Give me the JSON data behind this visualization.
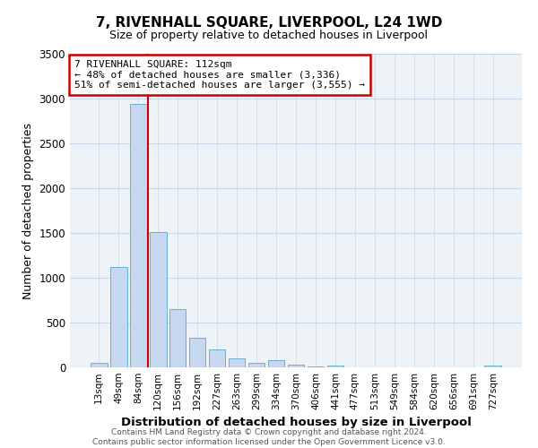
{
  "title": "7, RIVENHALL SQUARE, LIVERPOOL, L24 1WD",
  "subtitle": "Size of property relative to detached houses in Liverpool",
  "xlabel": "Distribution of detached houses by size in Liverpool",
  "ylabel": "Number of detached properties",
  "bar_labels": [
    "13sqm",
    "49sqm",
    "84sqm",
    "120sqm",
    "156sqm",
    "192sqm",
    "227sqm",
    "263sqm",
    "299sqm",
    "334sqm",
    "370sqm",
    "406sqm",
    "441sqm",
    "477sqm",
    "513sqm",
    "549sqm",
    "584sqm",
    "620sqm",
    "656sqm",
    "691sqm",
    "727sqm"
  ],
  "bar_values": [
    50,
    1120,
    2940,
    1510,
    650,
    330,
    200,
    100,
    55,
    80,
    30,
    15,
    22,
    5,
    2,
    1,
    0,
    0,
    0,
    0,
    20
  ],
  "bar_color": "#c5d8ef",
  "bar_edge_color": "#6baed6",
  "vline_color": "#cc0000",
  "ylim": [
    0,
    3500
  ],
  "yticks": [
    0,
    500,
    1000,
    1500,
    2000,
    2500,
    3000,
    3500
  ],
  "annotation_text": "7 RIVENHALL SQUARE: 112sqm\n← 48% of detached houses are smaller (3,336)\n51% of semi-detached houses are larger (3,555) →",
  "annotation_box_facecolor": "#ffffff",
  "annotation_box_edgecolor": "#cc0000",
  "grid_color": "#c8d8e8",
  "axes_facecolor": "#eef3f8",
  "figure_facecolor": "#ffffff",
  "footer_line1": "Contains HM Land Registry data © Crown copyright and database right 2024.",
  "footer_line2": "Contains public sector information licensed under the Open Government Licence v3.0.",
  "title_fontsize": 11,
  "subtitle_fontsize": 9,
  "ylabel_fontsize": 9,
  "xlabel_fontsize": 9.5,
  "tick_fontsize": 7.5,
  "annotation_fontsize": 8.0,
  "footer_fontsize": 6.5
}
